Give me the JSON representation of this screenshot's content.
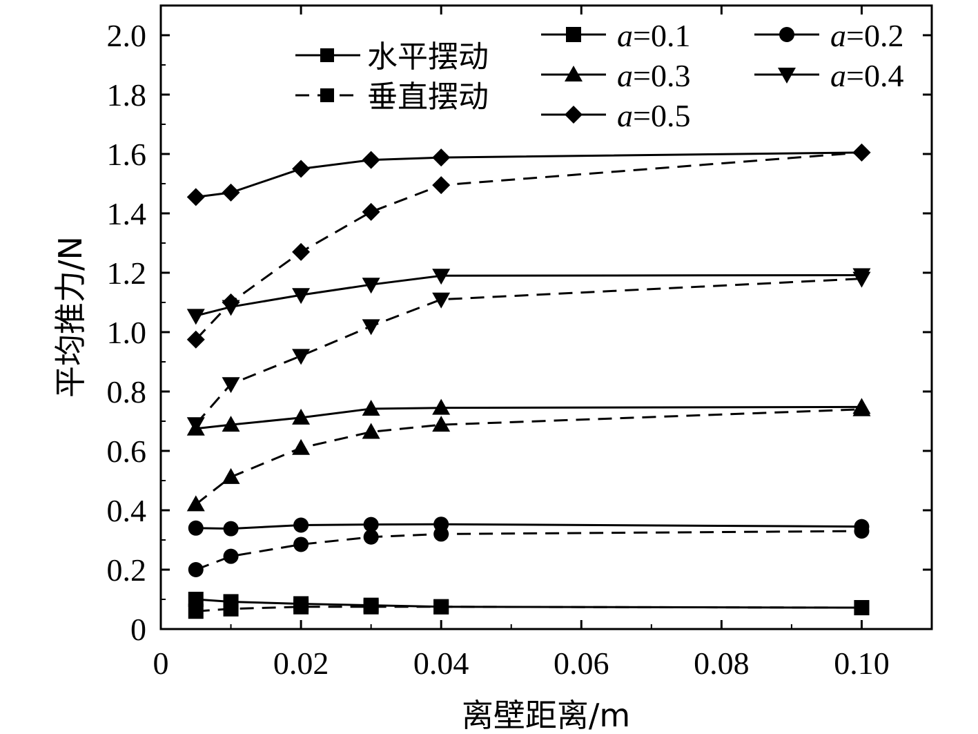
{
  "chart_data": {
    "type": "line",
    "title": "",
    "xlabel": "离壁距离/m",
    "ylabel": "平均推力/N",
    "xlim": [
      0,
      0.11
    ],
    "ylim": [
      0,
      2.1
    ],
    "x_ticks": [
      0,
      0.02,
      0.04,
      0.06,
      0.08,
      0.1
    ],
    "x_tick_labels": [
      "0",
      "0.02",
      "0.04",
      "0.06",
      "0.08",
      "0.10"
    ],
    "y_ticks": [
      0,
      0.2,
      0.4,
      0.6,
      0.8,
      1.0,
      1.2,
      1.4,
      1.6,
      1.8,
      2.0
    ],
    "y_tick_labels": [
      "0",
      "0.2",
      "0.4",
      "0.6",
      "0.8",
      "1.0",
      "1.2",
      "1.4",
      "1.6",
      "1.8",
      "2.0"
    ],
    "grid": false,
    "legend_placement": "top-right",
    "style_legend": [
      {
        "label": "水平摆动",
        "line": "solid"
      },
      {
        "label": "垂直摆动",
        "line": "dashed"
      }
    ],
    "amplitude_legend": [
      {
        "var": "a",
        "value": "=0.1",
        "marker": "square"
      },
      {
        "var": "a",
        "value": "=0.2",
        "marker": "circle"
      },
      {
        "var": "a",
        "value": "=0.3",
        "marker": "triangle-up"
      },
      {
        "var": "a",
        "value": "=0.4",
        "marker": "triangle-down"
      },
      {
        "var": "a",
        "value": "=0.5",
        "marker": "diamond"
      }
    ],
    "x": [
      0.005,
      0.01,
      0.02,
      0.03,
      0.04,
      0.1
    ],
    "series": [
      {
        "amplitude": "0.1",
        "mode": "水平摆动",
        "marker": "square",
        "line": "solid",
        "values": [
          0.1,
          0.092,
          0.085,
          0.08,
          0.075,
          0.072
        ]
      },
      {
        "amplitude": "0.1",
        "mode": "垂直摆动",
        "marker": "square",
        "line": "dashed",
        "values": [
          0.06,
          0.068,
          0.075,
          0.075,
          0.075,
          0.072
        ]
      },
      {
        "amplitude": "0.2",
        "mode": "水平摆动",
        "marker": "circle",
        "line": "solid",
        "values": [
          0.34,
          0.338,
          0.35,
          0.352,
          0.353,
          0.345
        ]
      },
      {
        "amplitude": "0.2",
        "mode": "垂直摆动",
        "marker": "circle",
        "line": "dashed",
        "values": [
          0.2,
          0.245,
          0.285,
          0.31,
          0.32,
          0.33
        ]
      },
      {
        "amplitude": "0.3",
        "mode": "水平摆动",
        "marker": "triangle-up",
        "line": "solid",
        "values": [
          0.675,
          0.688,
          0.712,
          0.742,
          0.745,
          0.748
        ]
      },
      {
        "amplitude": "0.3",
        "mode": "垂直摆动",
        "marker": "triangle-up",
        "line": "dashed",
        "values": [
          0.42,
          0.512,
          0.61,
          0.664,
          0.688,
          0.74
        ]
      },
      {
        "amplitude": "0.4",
        "mode": "水平摆动",
        "marker": "triangle-down",
        "line": "solid",
        "values": [
          1.055,
          1.085,
          1.125,
          1.16,
          1.19,
          1.192
        ]
      },
      {
        "amplitude": "0.4",
        "mode": "垂直摆动",
        "marker": "triangle-down",
        "line": "dashed",
        "values": [
          0.69,
          0.825,
          0.92,
          1.02,
          1.11,
          1.18
        ]
      },
      {
        "amplitude": "0.5",
        "mode": "水平摆动",
        "marker": "diamond",
        "line": "solid",
        "values": [
          1.455,
          1.47,
          1.55,
          1.58,
          1.588,
          1.605
        ]
      },
      {
        "amplitude": "0.5",
        "mode": "垂直摆动",
        "marker": "diamond",
        "line": "dashed",
        "values": [
          0.975,
          1.1,
          1.27,
          1.405,
          1.495,
          1.605
        ]
      }
    ]
  }
}
